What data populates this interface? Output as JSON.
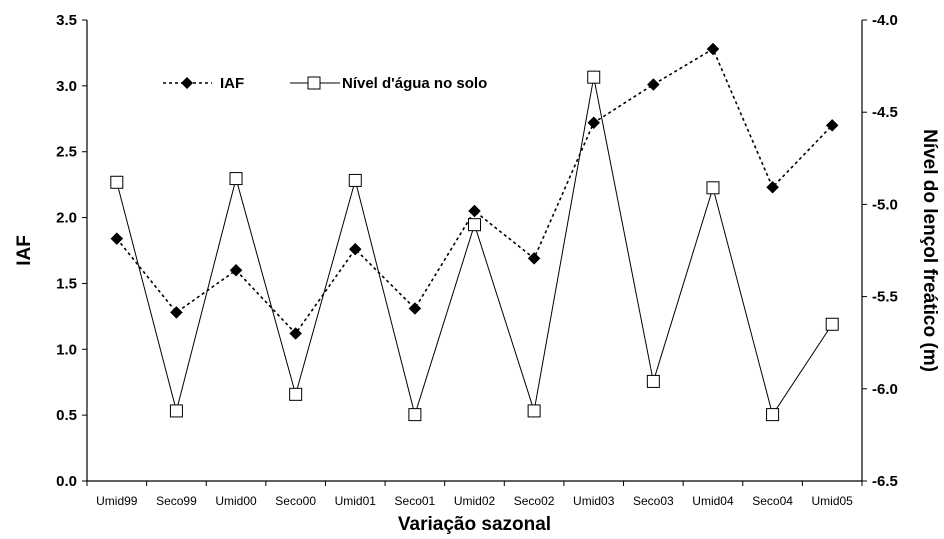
{
  "chart_data": {
    "type": "line",
    "xlabel": "Variação sazonal",
    "ylabel": "IAF",
    "y2label": "Nível do lençol freático (m)",
    "categories": [
      "Umid99",
      "Seco99",
      "Umid00",
      "Seco00",
      "Umid01",
      "Seco01",
      "Umid02",
      "Seco02",
      "Umid03",
      "Seco03",
      "Umid04",
      "Seco04",
      "Umid05"
    ],
    "ylim": [
      0.0,
      3.5
    ],
    "yticks": [
      "0.0",
      "0.5",
      "1.0",
      "1.5",
      "2.0",
      "2.5",
      "3.0",
      "3.5"
    ],
    "y2lim": [
      -6.5,
      -4.0
    ],
    "y2ticks": [
      "-6.5",
      "-6.0",
      "-5.5",
      "-5.0",
      "-4.5",
      "-4.0"
    ],
    "grid": false,
    "legend_position": "top-left",
    "series": [
      {
        "name": "IAF",
        "axis": "left",
        "style": "dotted",
        "marker": "filled-diamond",
        "color": "#000000",
        "values": [
          1.84,
          1.28,
          1.6,
          1.12,
          1.76,
          1.31,
          2.05,
          1.69,
          2.72,
          3.01,
          3.28,
          2.23,
          2.7
        ]
      },
      {
        "name": "Nível d'água no solo",
        "axis": "right",
        "style": "solid",
        "marker": "open-square",
        "color": "#000000",
        "values": [
          -4.88,
          -6.12,
          -4.86,
          -6.03,
          -4.87,
          -6.14,
          -5.11,
          -6.12,
          -4.31,
          -5.96,
          -4.91,
          -6.14,
          -5.65
        ]
      }
    ]
  }
}
